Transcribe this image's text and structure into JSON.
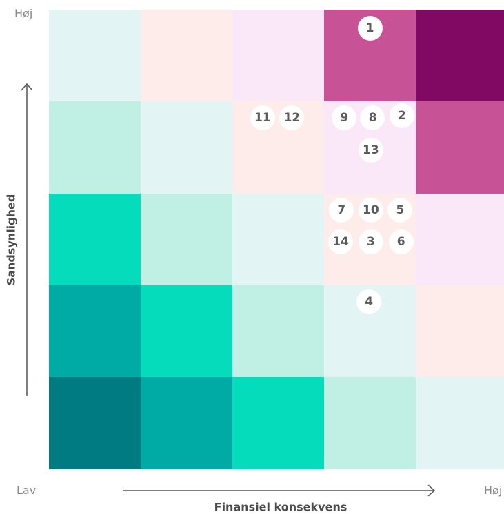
{
  "axes": {
    "y_title": "Sandsynlighed",
    "x_title": "Finansiel konsekvens",
    "y_high_label": "Høj",
    "x_low_label": "Lav",
    "x_high_label": "Høj"
  },
  "matrix": {
    "rows": 5,
    "cols": 5,
    "colors": [
      [
        "#e3f4f4",
        "#feeceb",
        "#fae8f8",
        "#c75296",
        "#810863"
      ],
      [
        "#c0efe4",
        "#e3f4f4",
        "#feeceb",
        "#fae8f8",
        "#c75296"
      ],
      [
        "#05dcbb",
        "#c0efe4",
        "#e3f4f4",
        "#feeceb",
        "#fae8f8"
      ],
      [
        "#00aba6",
        "#05dcbb",
        "#c0efe4",
        "#e3f4f4",
        "#feeceb"
      ],
      [
        "#007b81",
        "#00aba6",
        "#05dcbb",
        "#c0efe4",
        "#e3f4f4"
      ]
    ]
  },
  "risks": [
    {
      "id": "1",
      "row": 0,
      "col": 3,
      "slot": [
        0.5,
        0.2
      ]
    },
    {
      "id": "11",
      "row": 1,
      "col": 2,
      "slot": [
        0.33,
        0.18
      ]
    },
    {
      "id": "12",
      "row": 1,
      "col": 2,
      "slot": [
        0.65,
        0.18
      ]
    },
    {
      "id": "9",
      "row": 1,
      "col": 3,
      "slot": [
        0.22,
        0.18
      ]
    },
    {
      "id": "8",
      "row": 1,
      "col": 3,
      "slot": [
        0.53,
        0.18
      ]
    },
    {
      "id": "2",
      "row": 1,
      "col": 3,
      "slot": [
        0.85,
        0.16
      ]
    },
    {
      "id": "13",
      "row": 1,
      "col": 3,
      "slot": [
        0.51,
        0.53
      ]
    },
    {
      "id": "7",
      "row": 2,
      "col": 3,
      "slot": [
        0.19,
        0.18
      ]
    },
    {
      "id": "10",
      "row": 2,
      "col": 3,
      "slot": [
        0.51,
        0.18
      ]
    },
    {
      "id": "5",
      "row": 2,
      "col": 3,
      "slot": [
        0.83,
        0.18
      ]
    },
    {
      "id": "14",
      "row": 2,
      "col": 3,
      "slot": [
        0.18,
        0.53
      ]
    },
    {
      "id": "3",
      "row": 2,
      "col": 3,
      "slot": [
        0.51,
        0.53
      ]
    },
    {
      "id": "6",
      "row": 2,
      "col": 3,
      "slot": [
        0.84,
        0.53
      ]
    },
    {
      "id": "4",
      "row": 3,
      "col": 3,
      "slot": [
        0.49,
        0.18
      ]
    }
  ]
}
